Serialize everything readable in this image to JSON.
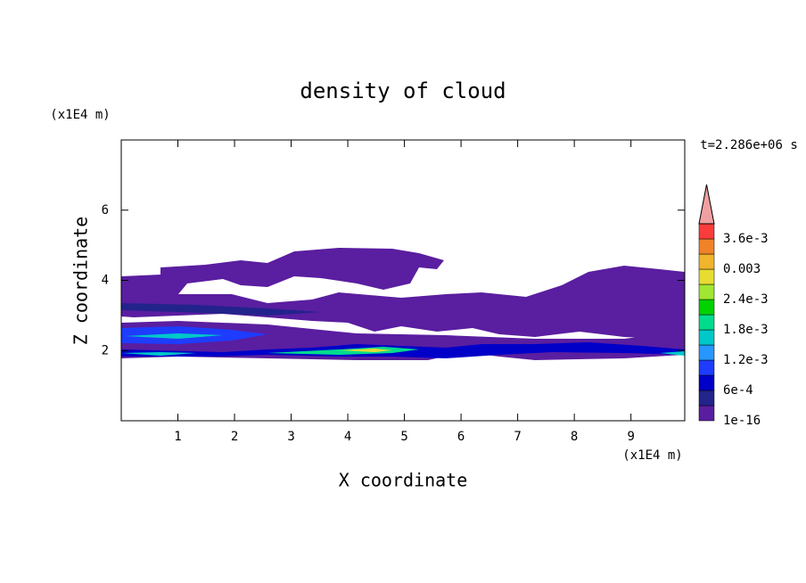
{
  "chart_data": {
    "type": "contour",
    "title": "density of cloud",
    "x_label": "X coordinate",
    "y_label": "Z coordinate",
    "x_unit": "(x1E4 m)",
    "y_unit": "(x1E4 m)",
    "annotation": "t=2.286e+06 s",
    "xlim": [
      0,
      9.95
    ],
    "ylim": [
      0,
      8
    ],
    "xticks": [
      1,
      2,
      3,
      4,
      5,
      6,
      7,
      8,
      9
    ],
    "yticks": [
      2,
      4,
      6
    ],
    "levels": [
      1e-16,
      0.0003,
      0.0006,
      0.0009,
      0.0012,
      0.0015,
      0.0018,
      0.0021,
      0.0024,
      0.0027,
      0.003,
      0.0033,
      0.0036,
      0.0039
    ],
    "colors": [
      "#5a1ea0",
      "#23238c",
      "#0000c8",
      "#1e3cff",
      "#2896ff",
      "#00c8c8",
      "#00dc8c",
      "#00d200",
      "#a0e632",
      "#e6dc32",
      "#f0b42d",
      "#f08228",
      "#fa3c3c"
    ],
    "extend_color": "#f0a0a0",
    "colorbar_ticks": [
      1e-16,
      {
        "value": 0.0006,
        "label": "6e-4"
      },
      {
        "value": 0.0012,
        "label": "1.2e-3"
      },
      {
        "value": 0.0018,
        "label": "1.8e-3"
      },
      {
        "value": 0.0024,
        "label": "2.4e-3"
      },
      0.003,
      {
        "value": 0.0036,
        "label": "3.6e-3"
      }
    ]
  }
}
